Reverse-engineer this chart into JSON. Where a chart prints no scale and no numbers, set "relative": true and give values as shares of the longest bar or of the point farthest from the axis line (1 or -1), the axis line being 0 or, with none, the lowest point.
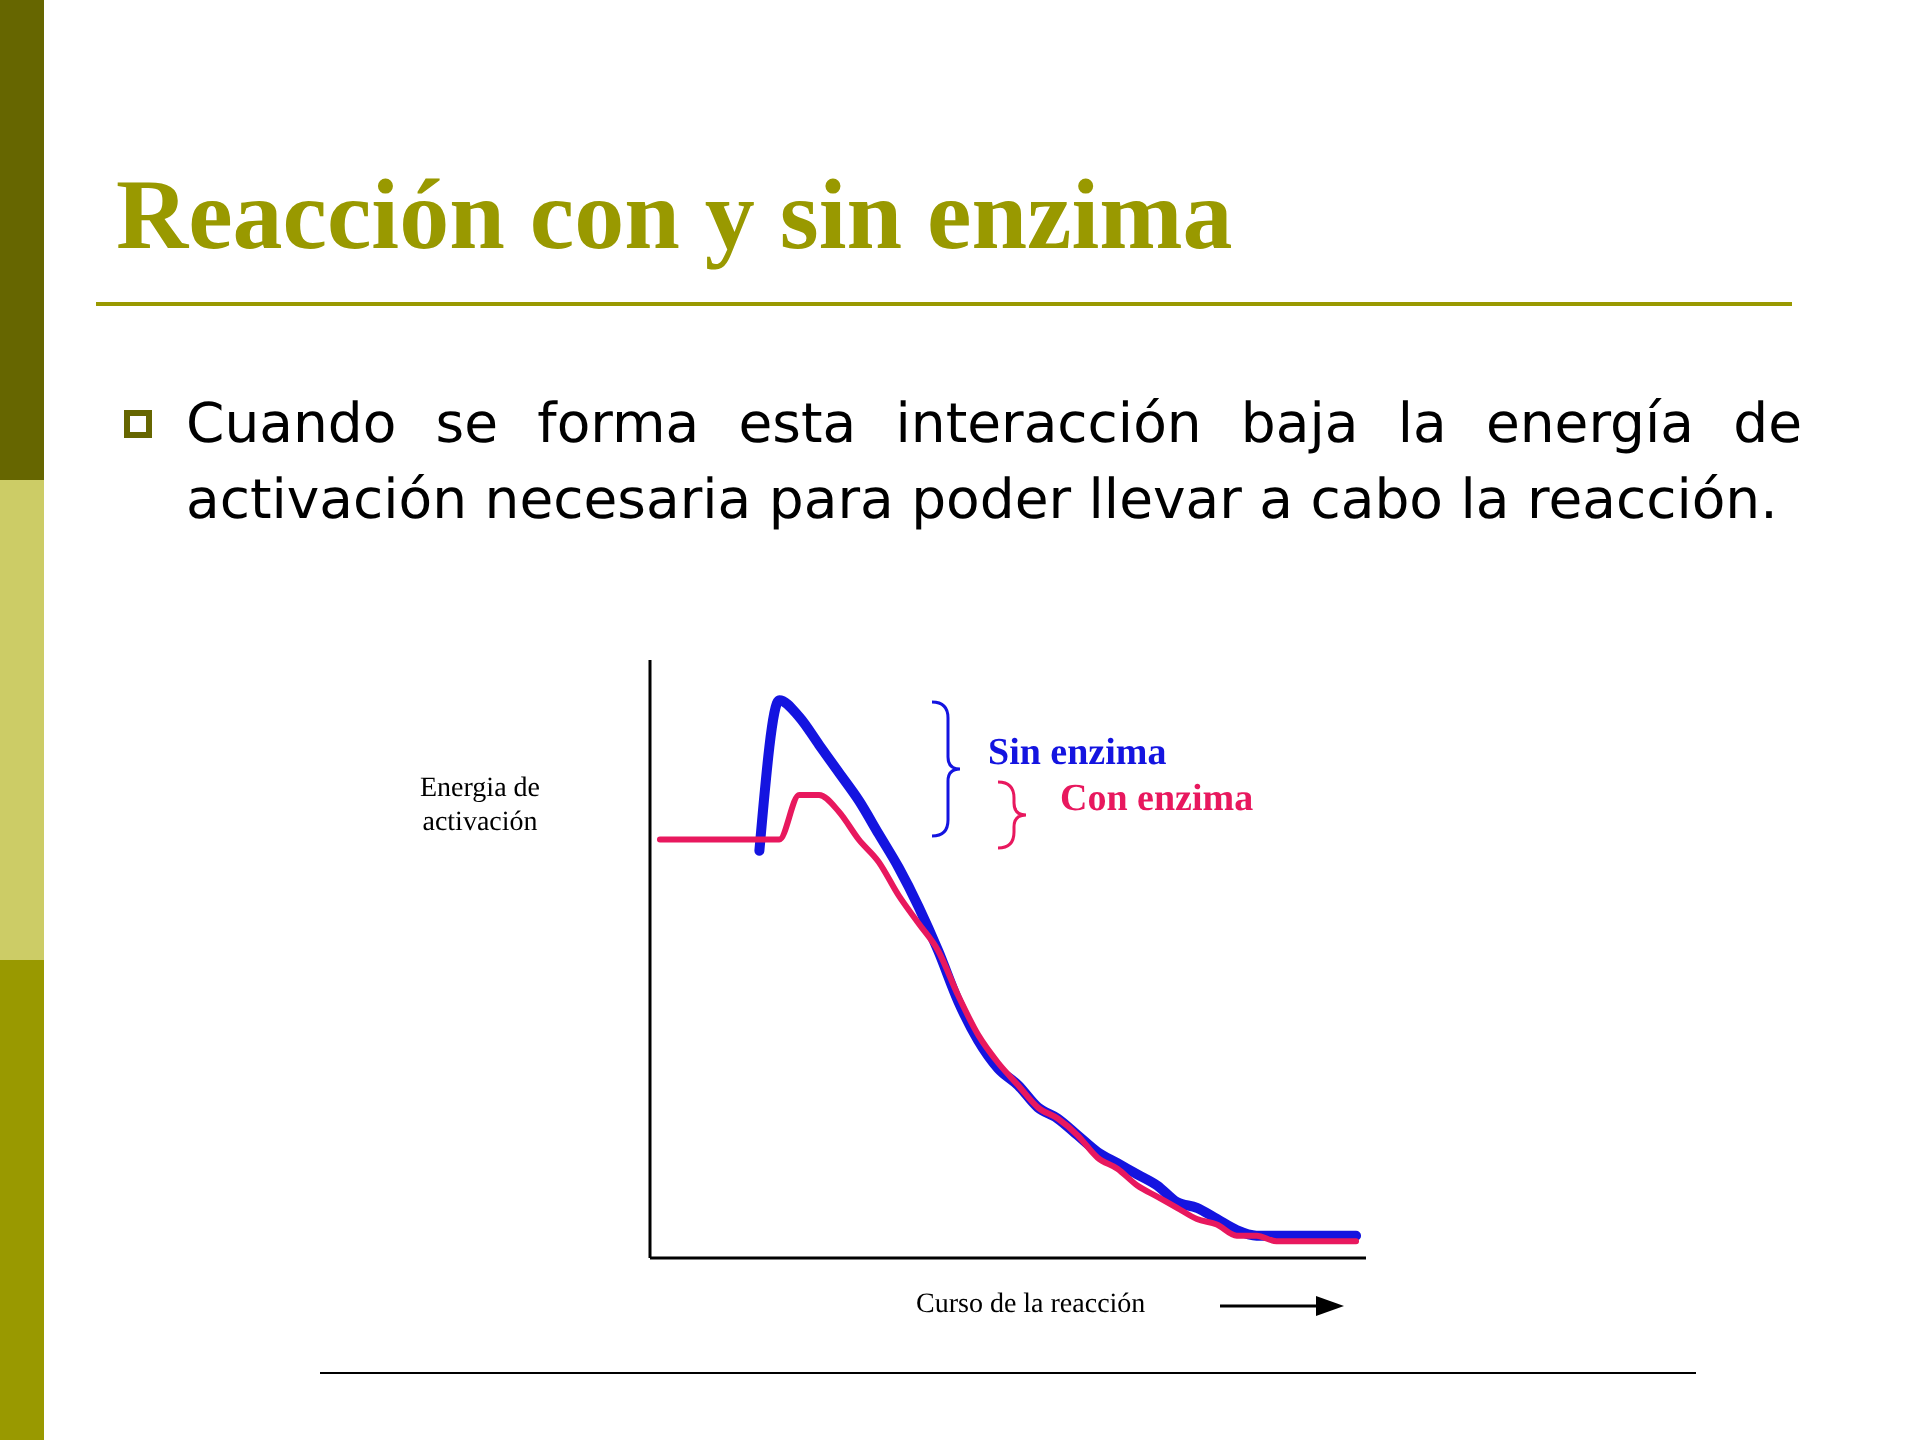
{
  "chart_data": {
    "type": "line",
    "title": "Reacción con y sin enzima",
    "subtitle": "Cuando se forma esta interacción baja la energía de activación necesaria para poder llevar a cabo la reacción.",
    "xlabel": "Curso de la reacción",
    "ylabel": "Energia de activación",
    "relative": true,
    "tick_labels": false,
    "categories": [
      null,
      null,
      null,
      null,
      null,
      null,
      null,
      null,
      null,
      null,
      null,
      null,
      null,
      null,
      null,
      null,
      null,
      null,
      null,
      null,
      null,
      null,
      null,
      null,
      null,
      null,
      null,
      null,
      null,
      null,
      null,
      null,
      null,
      null,
      null,
      null
    ],
    "series": [
      {
        "name": "Sin enzima",
        "color": "#1414e0",
        "values": [
          null,
          null,
          null,
          null,
          null,
          0.73,
          1.0,
          0.97,
          0.92,
          0.87,
          0.82,
          0.76,
          0.7,
          0.63,
          0.55,
          0.46,
          0.39,
          0.34,
          0.31,
          0.27,
          0.25,
          0.22,
          0.19,
          0.17,
          0.15,
          0.13,
          0.1,
          0.09,
          0.07,
          0.05,
          0.04,
          0.04,
          0.04,
          0.04,
          0.04,
          0.04
        ]
      },
      {
        "name": "Con enzima",
        "color": "#e8185e",
        "values": [
          0.75,
          0.75,
          0.75,
          0.75,
          0.75,
          0.75,
          0.75,
          0.83,
          0.83,
          0.8,
          0.75,
          0.71,
          0.65,
          0.6,
          0.55,
          0.47,
          0.4,
          0.35,
          0.31,
          0.27,
          0.25,
          0.22,
          0.18,
          0.16,
          0.13,
          0.11,
          0.09,
          0.07,
          0.06,
          0.04,
          0.04,
          0.03,
          0.03,
          0.03,
          0.03,
          0.03
        ]
      }
    ]
  }
}
